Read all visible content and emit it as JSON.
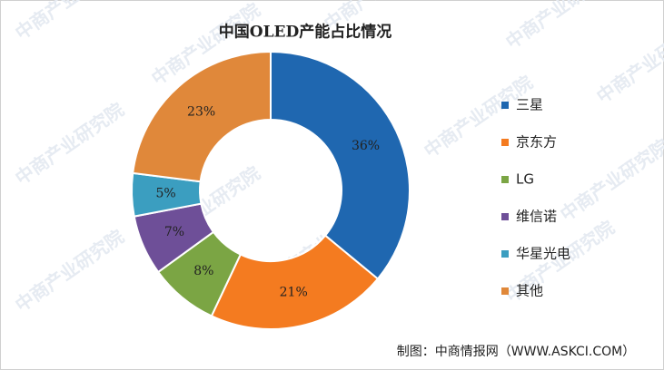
{
  "chart_data": {
    "type": "donut",
    "title": "中国OLED产能占比情况",
    "categories": [
      "三星",
      "京东方",
      "LG",
      "维信诺",
      "华星光电",
      "其他"
    ],
    "values": [
      36,
      21,
      8,
      7,
      5,
      23
    ],
    "value_labels": [
      "36%",
      "21%",
      "8%",
      "7%",
      "5%",
      "23%"
    ],
    "colors": [
      "#1f67b0",
      "#f47b20",
      "#7ba544",
      "#6e4f98",
      "#3b9ec0",
      "#e0883a"
    ],
    "legend": "right",
    "source": "制图：中商情报网（WWW.ASKCI.COM）",
    "watermark": "中商产业研究院"
  }
}
